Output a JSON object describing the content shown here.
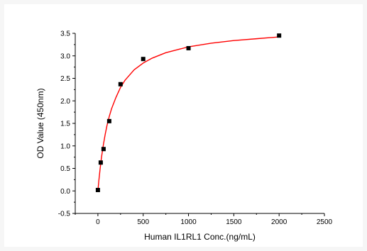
{
  "chart_data": {
    "type": "scatter",
    "title": "",
    "xlabel": "Human IL1RL1 Conc.(ng/mL)",
    "ylabel": "OD Value (450nm)",
    "xlim": [
      -250,
      2500
    ],
    "ylim": [
      -0.5,
      3.5
    ],
    "x_ticks": [
      "0",
      "500",
      "1000",
      "1500",
      "2000",
      "2500"
    ],
    "y_ticks": [
      "-0.5",
      "0.0",
      "0.5",
      "1.0",
      "1.5",
      "2.0",
      "2.5",
      "3.0",
      "3.5"
    ],
    "grid": false,
    "legend": "none",
    "series": [
      {
        "kind": "points",
        "marker": "square",
        "color": "#000000",
        "x": [
          0,
          31.25,
          62.5,
          125,
          250,
          500,
          1000,
          2000
        ],
        "y": [
          0.02,
          0.63,
          0.93,
          1.55,
          2.37,
          2.93,
          3.17,
          3.45
        ]
      },
      {
        "kind": "fit-curve",
        "color": "#ff0000",
        "x": [
          0,
          10,
          25,
          40,
          62.5,
          80,
          100,
          125,
          150,
          200,
          250,
          300,
          400,
          500,
          600,
          750,
          1000,
          1250,
          1500,
          1750,
          2000
        ],
        "y": [
          0.0,
          0.22,
          0.5,
          0.75,
          1.05,
          1.25,
          1.45,
          1.65,
          1.82,
          2.08,
          2.3,
          2.46,
          2.69,
          2.84,
          2.95,
          3.07,
          3.2,
          3.28,
          3.34,
          3.38,
          3.42
        ]
      }
    ]
  }
}
